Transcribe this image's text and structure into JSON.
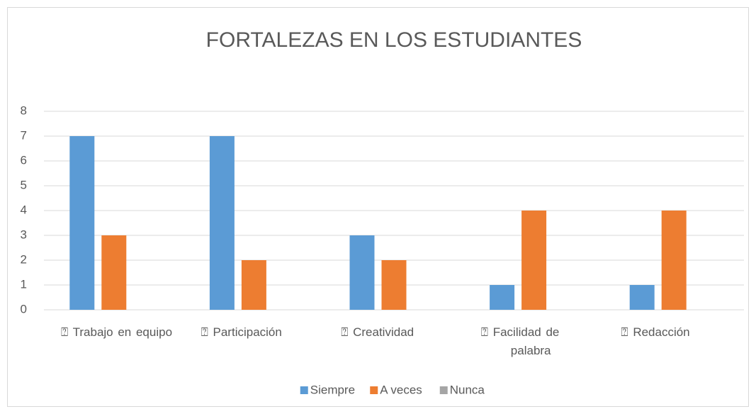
{
  "chart_data": {
    "type": "bar",
    "title": "FORTALEZAS EN LOS ESTUDIANTES",
    "categories": [
      "⍰ Trabajo en equipo",
      "⍰ Participación",
      "⍰ Creatividad",
      "⍰ Facilidad de palabra",
      "⍰ Redacción"
    ],
    "series": [
      {
        "name": "Siempre",
        "color": "#5b9bd5",
        "values": [
          7,
          7,
          3,
          1,
          1
        ]
      },
      {
        "name": "A veces",
        "color": "#ed7d31",
        "values": [
          3,
          2,
          2,
          4,
          4
        ]
      },
      {
        "name": "Nunca",
        "color": "#a5a5a5",
        "values": [
          0,
          0,
          0,
          0,
          0
        ]
      }
    ],
    "ylim": [
      0,
      8
    ],
    "yticks": [
      0,
      1,
      2,
      3,
      4,
      5,
      6,
      7,
      8
    ],
    "grid": true,
    "legend": "bottom"
  }
}
